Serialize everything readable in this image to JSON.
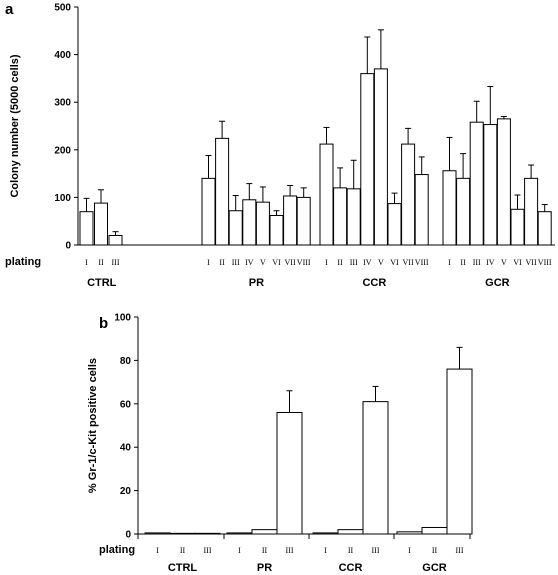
{
  "chart_data": [
    {
      "panel": "a",
      "type": "bar",
      "ylabel": "Colony number (5000 cells)",
      "ylim": [
        0,
        500
      ],
      "yticks": [
        0,
        100,
        200,
        300,
        400,
        500
      ],
      "plating_label": "plating",
      "error_bars": true,
      "groups": [
        {
          "name": "CTRL",
          "platings": [
            "I",
            "II",
            "III"
          ],
          "values": [
            70,
            88,
            20
          ],
          "errors": [
            28,
            28,
            8
          ]
        },
        {
          "name": "PR",
          "platings": [
            "I",
            "II",
            "III",
            "IV",
            "V",
            "VI",
            "VII",
            "VIII"
          ],
          "values": [
            140,
            224,
            72,
            95,
            90,
            62,
            103,
            100
          ],
          "errors": [
            48,
            36,
            32,
            34,
            32,
            10,
            22,
            20
          ]
        },
        {
          "name": "CCR",
          "platings": [
            "I",
            "II",
            "III",
            "IV",
            "V",
            "VI",
            "VII",
            "VIII"
          ],
          "values": [
            212,
            120,
            118,
            360,
            370,
            87,
            212,
            148
          ],
          "errors": [
            35,
            42,
            60,
            77,
            82,
            22,
            33,
            37
          ]
        },
        {
          "name": "GCR",
          "platings": [
            "I",
            "II",
            "III",
            "IV",
            "V",
            "VI",
            "VII",
            "VIII"
          ],
          "values": [
            156,
            140,
            258,
            253,
            265,
            75,
            140,
            70
          ],
          "errors": [
            70,
            52,
            44,
            80,
            5,
            30,
            28,
            15
          ]
        }
      ]
    },
    {
      "panel": "b",
      "type": "bar",
      "ylabel": "% Gr-1/c-Kit positive cells",
      "ylim": [
        0,
        100
      ],
      "yticks": [
        0,
        20,
        40,
        60,
        80,
        100
      ],
      "plating_label": "plating",
      "error_bars": true,
      "groups": [
        {
          "name": "CTRL",
          "platings": [
            "I",
            "II",
            "III"
          ],
          "values": [
            0.5,
            0.3,
            0.3
          ],
          "errors": [
            0,
            0,
            0
          ]
        },
        {
          "name": "PR",
          "platings": [
            "I",
            "II",
            "III"
          ],
          "values": [
            0.5,
            2,
            56
          ],
          "errors": [
            0,
            0,
            10
          ]
        },
        {
          "name": "CCR",
          "platings": [
            "I",
            "II",
            "III"
          ],
          "values": [
            0.5,
            2,
            61
          ],
          "errors": [
            0,
            0,
            7
          ]
        },
        {
          "name": "GCR",
          "platings": [
            "I",
            "II",
            "III"
          ],
          "values": [
            1,
            3,
            76
          ],
          "errors": [
            0,
            0,
            10
          ]
        }
      ]
    }
  ]
}
